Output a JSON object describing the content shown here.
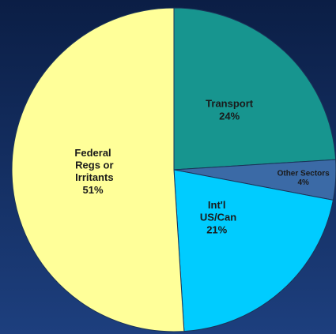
{
  "chart_data": {
    "type": "pie",
    "categories": [
      "Transport",
      "Other Sectors",
      "Int'l US/Can",
      "Federal Regs or Irritants"
    ],
    "values": [
      24,
      4,
      21,
      51
    ],
    "value_labels": [
      "24%",
      "4%",
      "21%",
      "51%"
    ],
    "colors": [
      "#17958f",
      "#3b6aa6",
      "#00ccff",
      "#ffff99"
    ]
  }
}
